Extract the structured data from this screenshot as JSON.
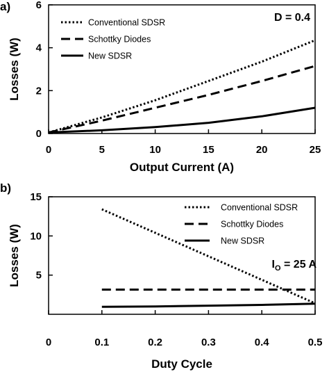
{
  "chart_data": [
    {
      "panel_label": "a)",
      "type": "line",
      "xlabel": "Output Current (A)",
      "ylabel": "Losses (W)",
      "xlim": [
        0,
        25
      ],
      "ylim": [
        0,
        6
      ],
      "x_ticks": [
        "0",
        "5",
        "10",
        "15",
        "20",
        "25"
      ],
      "y_ticks": [
        "0",
        "2",
        "4",
        "6"
      ],
      "annotation": "D = 0.4",
      "legend_position": "top-left",
      "grid": false,
      "series": [
        {
          "name": "Conventional SDSR",
          "style": "dotted",
          "x": [
            0,
            5,
            10,
            15,
            20,
            25
          ],
          "y": [
            0.05,
            0.75,
            1.55,
            2.45,
            3.35,
            4.35
          ]
        },
        {
          "name": "Schottky Diodes",
          "style": "dashed",
          "x": [
            0,
            5,
            10,
            15,
            20,
            25
          ],
          "y": [
            0.05,
            0.6,
            1.2,
            1.8,
            2.45,
            3.15
          ]
        },
        {
          "name": "New SDSR",
          "style": "solid",
          "x": [
            0,
            5,
            10,
            15,
            20,
            25
          ],
          "y": [
            0.05,
            0.15,
            0.3,
            0.5,
            0.8,
            1.2
          ]
        }
      ]
    },
    {
      "panel_label": "b)",
      "type": "line",
      "xlabel": "Duty Cycle",
      "ylabel": "Losses (W)",
      "xlim": [
        0,
        0.5
      ],
      "ylim": [
        0,
        15
      ],
      "x_ticks": [
        "0",
        "0.1",
        "0.2",
        "0.3",
        "0.4",
        "0.5"
      ],
      "y_ticks": [
        "5",
        "10",
        "15"
      ],
      "annotation_main": "I",
      "annotation_sub": "O",
      "annotation_rest": " = 25 A",
      "legend_position": "top-right",
      "grid": false,
      "series": [
        {
          "name": "Conventional SDSR",
          "style": "dotted",
          "x": [
            0.1,
            0.2,
            0.3,
            0.4,
            0.5
          ],
          "y": [
            13.4,
            10.4,
            7.4,
            4.4,
            1.4
          ]
        },
        {
          "name": "Schottky Diodes",
          "style": "dashed",
          "x": [
            0.1,
            0.2,
            0.3,
            0.4,
            0.5
          ],
          "y": [
            3.15,
            3.15,
            3.15,
            3.15,
            3.15
          ]
        },
        {
          "name": "New SDSR",
          "style": "solid",
          "x": [
            0.1,
            0.2,
            0.3,
            0.4,
            0.5
          ],
          "y": [
            0.95,
            1.0,
            1.1,
            1.2,
            1.35
          ]
        }
      ]
    }
  ]
}
